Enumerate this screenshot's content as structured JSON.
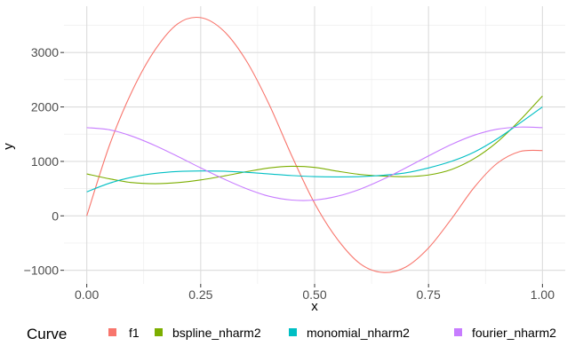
{
  "chart_data": {
    "type": "line",
    "title": "",
    "xlabel": "x",
    "ylabel": "y",
    "xlim": [
      -0.05,
      1.05
    ],
    "ylim": [
      -1250,
      3850
    ],
    "x_ticks": [
      0,
      0.25,
      0.5,
      0.75,
      1
    ],
    "x_tick_labels": [
      "0.00",
      "0.25",
      "0.50",
      "0.75",
      "1.00"
    ],
    "y_ticks": [
      -1000,
      0,
      1000,
      2000,
      3000
    ],
    "y_tick_labels": [
      "−1000",
      "0",
      "1000",
      "2000",
      "3000"
    ],
    "grid": true,
    "legend": {
      "title": "Curve",
      "position": "bottom"
    },
    "x": [
      0,
      0.05,
      0.1,
      0.15,
      0.2,
      0.25,
      0.3,
      0.35,
      0.4,
      0.45,
      0.5,
      0.55,
      0.6,
      0.65,
      0.7,
      0.75,
      0.8,
      0.85,
      0.9,
      0.95,
      1
    ],
    "series": [
      {
        "name": "f1",
        "color": "#F8766D",
        "values": [
          0,
          1300,
          2300,
          3050,
          3530,
          3640,
          3400,
          2850,
          2050,
          1100,
          230,
          -430,
          -880,
          -1040,
          -940,
          -590,
          -60,
          520,
          960,
          1180,
          1200
        ]
      },
      {
        "name": "bspline_nharm2",
        "color": "#7CAE00",
        "values": [
          770,
          680,
          610,
          590,
          610,
          660,
          730,
          810,
          880,
          910,
          890,
          820,
          760,
          730,
          720,
          750,
          850,
          1050,
          1350,
          1750,
          2200
        ]
      },
      {
        "name": "monomial_nharm2",
        "color": "#00BFC4",
        "values": [
          440,
          600,
          710,
          780,
          815,
          825,
          820,
          800,
          770,
          740,
          720,
          715,
          720,
          745,
          790,
          880,
          1000,
          1170,
          1410,
          1700,
          2000
        ]
      },
      {
        "name": "fourier_nharm2",
        "color": "#C77CFF",
        "values": [
          1620,
          1580,
          1460,
          1290,
          1090,
          880,
          680,
          500,
          360,
          290,
          290,
          360,
          490,
          670,
          880,
          1100,
          1310,
          1480,
          1590,
          1630,
          1620
        ]
      }
    ]
  }
}
